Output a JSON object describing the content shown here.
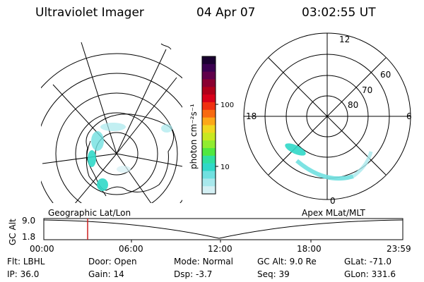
{
  "header": {
    "instrument": "Ultraviolet Imager",
    "date": "04 Apr 07",
    "time": "03:02:55 UT"
  },
  "colorbar": {
    "unit_label": "photon cm⁻²s⁻¹",
    "ticks": [
      "100",
      "10"
    ],
    "colors": [
      "#1a0030",
      "#3a0050",
      "#60004a",
      "#8a0030",
      "#b0001a",
      "#d8001a",
      "#f03010",
      "#f86a10",
      "#fca818",
      "#f0d820",
      "#c8e820",
      "#90ec30",
      "#50e840",
      "#30e0a0",
      "#30d8c8",
      "#70e0e0",
      "#a8e8ec",
      "#d4f0f4"
    ]
  },
  "apex_plot": {
    "mlt_labels": [
      "12",
      "18",
      "6",
      "0"
    ],
    "mlat_labels": [
      "60",
      "70",
      "80"
    ]
  },
  "timeline": {
    "left_caption": "Geographic Lat/Lon",
    "right_caption": "Apex MLat/MLT",
    "axis_title": "GC Alt",
    "y_ticks": [
      "9.0",
      "1.8"
    ],
    "x_ticks": [
      "00:00",
      "06:00",
      "12:00",
      "18:00",
      "23:59"
    ],
    "marker_color": "#cc2020"
  },
  "info": {
    "filter_label": "Flt:",
    "filter_value": "LBHL",
    "door_label": "Door:",
    "door_value": "Open",
    "mode_label": "Mode:",
    "mode_value": "Normal",
    "gcalt_label": "GC Alt:",
    "gcalt_value": "9.0 Re",
    "glat_label": "GLat:",
    "glat_value": "-71.0",
    "ip_label": "IP:",
    "ip_value": "36.0",
    "gain_label": "Gain:",
    "gain_value": "14",
    "dsp_label": "Dsp:",
    "dsp_value": "-3.7",
    "seq_label": "Seq:",
    "seq_value": "39",
    "glon_label": "GLon:",
    "glon_value": "331.6"
  }
}
